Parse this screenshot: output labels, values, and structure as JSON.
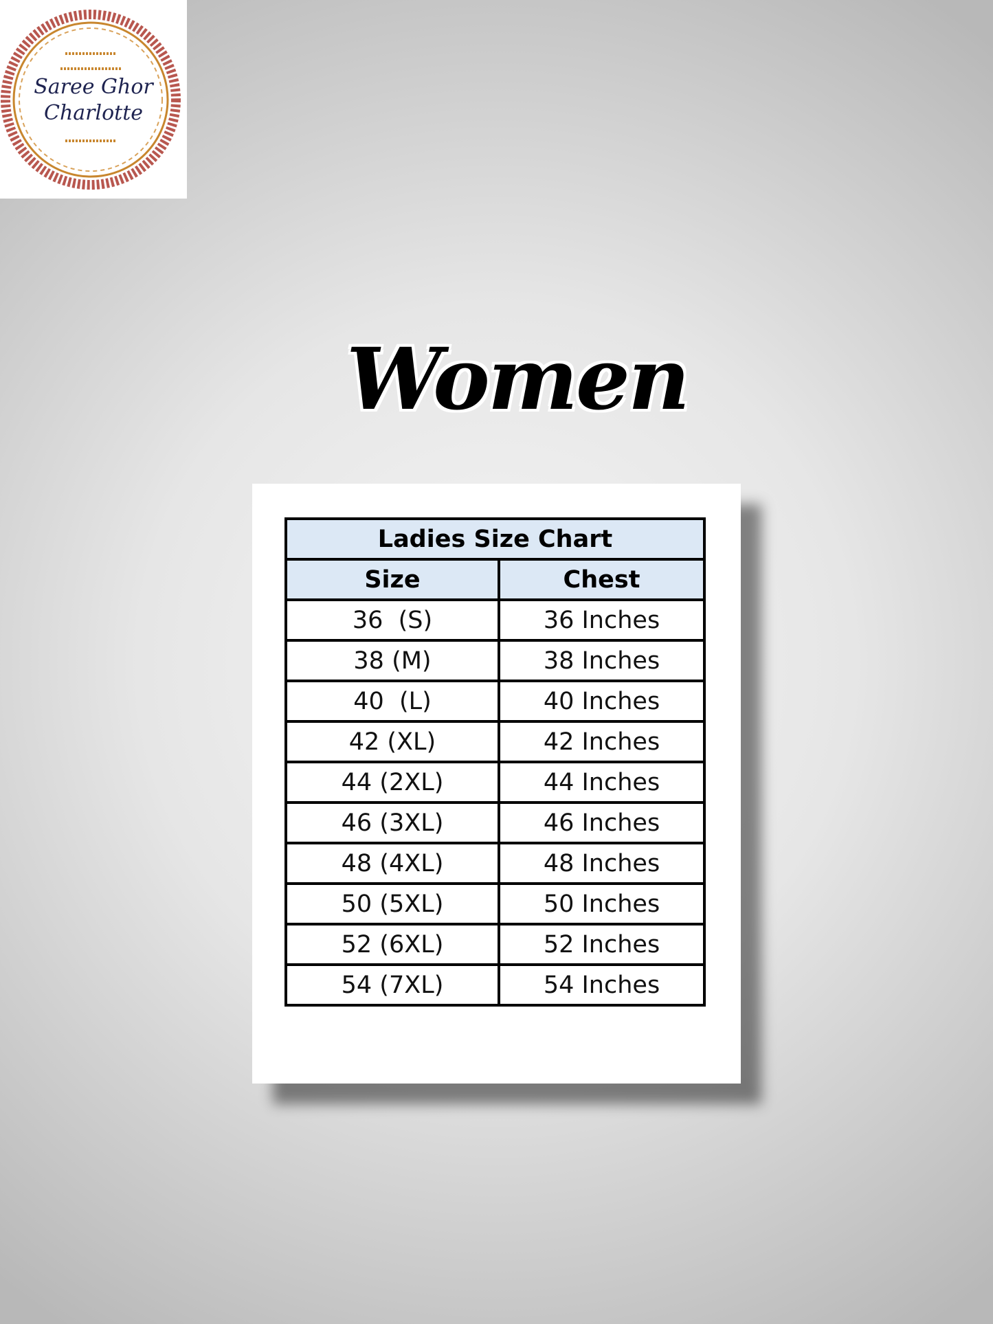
{
  "logo": {
    "line1": "Saree Ghor",
    "line2": "Charlotte",
    "colors": {
      "border": "#b8574f",
      "ornament": "#c8862e",
      "text": "#1e2350"
    }
  },
  "title": "Women",
  "table": {
    "caption": "Ladies Size Chart",
    "headers": [
      "Size",
      "Chest"
    ],
    "rows": [
      [
        "36  (S)",
        "36 Inches"
      ],
      [
        "38 (M)",
        "38 Inches"
      ],
      [
        "40  (L)",
        "40 Inches"
      ],
      [
        "42 (XL)",
        "42 Inches"
      ],
      [
        "44 (2XL)",
        "44 Inches"
      ],
      [
        "46 (3XL)",
        "46 Inches"
      ],
      [
        "48 (4XL)",
        "48 Inches"
      ],
      [
        "50 (5XL)",
        "50 Inches"
      ],
      [
        "52 (6XL)",
        "52 Inches"
      ],
      [
        "54 (7XL)",
        "54 Inches"
      ]
    ],
    "header_bg": "#dce8f5"
  }
}
